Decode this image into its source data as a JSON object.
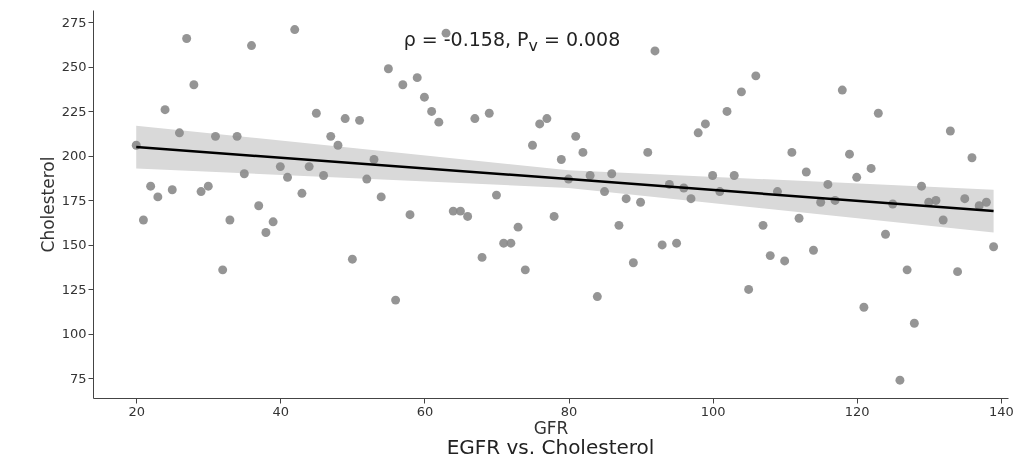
{
  "chart_data": {
    "type": "scatter",
    "title": "EGFR vs. Cholesterol",
    "xlabel": "GFR",
    "ylabel": "Cholesterol",
    "annotations": [
      "ρ = -0.158, P$_{v}$ = 0.008"
    ],
    "xlim": [
      14,
      141
    ],
    "xticks": [
      20,
      40,
      60,
      80,
      100,
      120,
      140
    ],
    "ylim": [
      64,
      282
    ],
    "yticks": [
      75,
      100,
      125,
      150,
      175,
      200,
      225,
      250,
      275
    ],
    "grid": false,
    "x": [
      20,
      21,
      22,
      23,
      24,
      25,
      26,
      27,
      28,
      29,
      30,
      31,
      32,
      33,
      34,
      35,
      36,
      37,
      38,
      39,
      40,
      41,
      42,
      43,
      44,
      45,
      46,
      47,
      48,
      49,
      50,
      51,
      52,
      53,
      54,
      55,
      56,
      57,
      58,
      59,
      60,
      61,
      62,
      63,
      64,
      65,
      66,
      67,
      68,
      69,
      70,
      71,
      72,
      73,
      74,
      75,
      76,
      77,
      78,
      79,
      80,
      81,
      82,
      83,
      84,
      85,
      86,
      87,
      88,
      89,
      90,
      91,
      92,
      93,
      94,
      95,
      96,
      97,
      98,
      99,
      100,
      101,
      102,
      103,
      104,
      105,
      106,
      107,
      108,
      109,
      110,
      111,
      112,
      113,
      114,
      115,
      116,
      117,
      118,
      119,
      120,
      121,
      122,
      123,
      124,
      125,
      126,
      127,
      128,
      129,
      130,
      131,
      132,
      133,
      134,
      135,
      136,
      137,
      138,
      139
    ],
    "series": [
      {
        "marker": "circle",
        "color": "#8a8a8a",
        "values": [
          206,
          164,
          183,
          177,
          226,
          181,
          213,
          266,
          240,
          180,
          183,
          211,
          136,
          164,
          211,
          190,
          262,
          172,
          157,
          163,
          194,
          188,
          271,
          179,
          194,
          224,
          189,
          211,
          206,
          221,
          142,
          220,
          187,
          198,
          177,
          249,
          119,
          240,
          167,
          244,
          233,
          225,
          219,
          269,
          169,
          169,
          166,
          221,
          143,
          224,
          178,
          151,
          151,
          160,
          136,
          206,
          218,
          221,
          166,
          198,
          187,
          211,
          202,
          189,
          121,
          180,
          190,
          161,
          176,
          140,
          174,
          202,
          259,
          150,
          184,
          151,
          182,
          176,
          213,
          218,
          189,
          180,
          225,
          189,
          236,
          125,
          245,
          161,
          144,
          180,
          141,
          202,
          165,
          191,
          147,
          174,
          184,
          175,
          237,
          201,
          188,
          115,
          193,
          224,
          156,
          173,
          74,
          136,
          106,
          183,
          174,
          175,
          164,
          214,
          135,
          176,
          199,
          172,
          174,
          149
        ]
      },
      {
        "type": "line",
        "marker": "none",
        "color": "#000000",
        "x": [
          20,
          80,
          139
        ],
        "values": [
          205,
          187,
          169
        ],
        "lower": [
          193,
          182,
          157
        ],
        "upper": [
          217,
          192,
          181
        ]
      }
    ]
  }
}
